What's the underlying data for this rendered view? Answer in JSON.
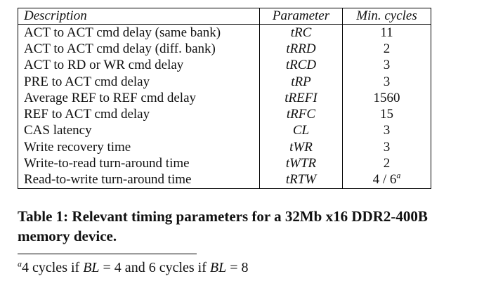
{
  "table": {
    "header": [
      "Description",
      "Parameter",
      "Min. cycles"
    ],
    "rows": [
      [
        "ACT to ACT cmd delay (same bank)",
        "tRC",
        "11"
      ],
      [
        "ACT to ACT cmd delay (diff. bank)",
        "tRRD",
        "2"
      ],
      [
        "ACT to RD or WR cmd delay",
        "tRCD",
        "3"
      ],
      [
        "PRE to ACT cmd delay",
        "tRP",
        "3"
      ],
      [
        "Average REF to REF cmd delay",
        "tREFI",
        "1560"
      ],
      [
        "REF to ACT cmd delay",
        "tRFC",
        "15"
      ],
      [
        "CAS latency",
        "CL",
        "3"
      ],
      [
        "Write recovery time",
        "tWR",
        "3"
      ],
      [
        "Write-to-read turn-around time",
        "tWTR",
        "2"
      ],
      [
        "Read-to-write turn-around time",
        "tRTW",
        "4 / 6"
      ]
    ]
  },
  "caption": "Table 1: Relevant timing parameters for a 32Mb x16 DDR2-400B memory device.",
  "footnote": {
    "marker": "a",
    "text": [
      "4 cycles if ",
      "BL",
      " = 4 and 6 cycles if ",
      "BL",
      " = 8"
    ]
  }
}
